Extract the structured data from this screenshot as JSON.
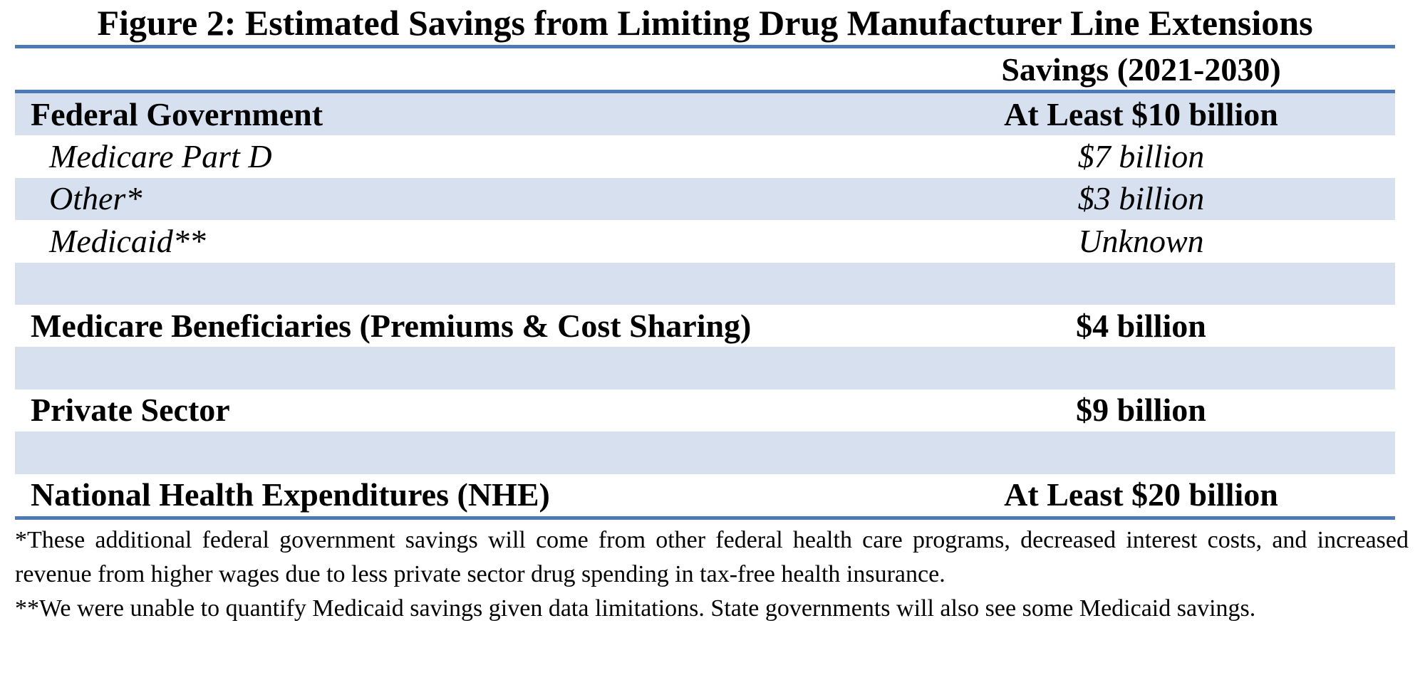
{
  "title": "Figure 2: Estimated Savings from Limiting Drug Manufacturer Line Extensions",
  "table": {
    "column_header": "Savings (2021-2030)",
    "rows": [
      {
        "label": "Federal Government",
        "value": "At Least $10 billion"
      },
      {
        "label": "Medicare Part D",
        "value": "$7 billion"
      },
      {
        "label": "Other*",
        "value": "$3 billion"
      },
      {
        "label": "Medicaid**",
        "value": "Unknown"
      },
      {
        "label": "",
        "value": ""
      },
      {
        "label": "Medicare Beneficiaries (Premiums & Cost Sharing)",
        "value": "$4 billion"
      },
      {
        "label": "",
        "value": ""
      },
      {
        "label": "Private Sector",
        "value": "$9 billion"
      },
      {
        "label": "",
        "value": ""
      },
      {
        "label": "National Health Expenditures (NHE)",
        "value": "At Least $20 billion"
      }
    ]
  },
  "footnotes": [
    "*These additional federal government savings will come from other federal health care programs, decreased interest costs, and increased revenue from higher wages due to less private sector drug spending in tax-free health insurance.",
    "**We were unable to quantify Medicaid savings given data limitations. State governments will also see some Medicaid savings."
  ],
  "colors": {
    "rule_blue": "#4D79B6",
    "row_shade": "#D7E0EF",
    "text": "#000000"
  }
}
